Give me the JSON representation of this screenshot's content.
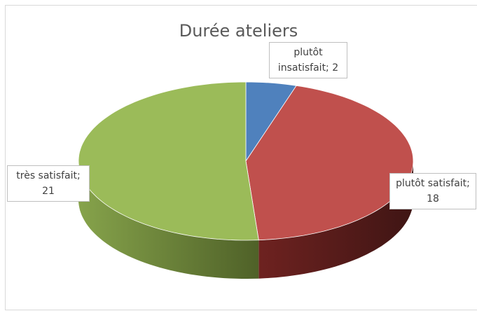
{
  "chart_data": {
    "type": "pie",
    "title": "Durée ateliers",
    "categories": [
      "plutôt insatisfait",
      "plutôt satisfait",
      "très satisfait"
    ],
    "values": [
      2,
      18,
      21
    ],
    "value_labels": [
      "plutôt insatisfait; 2",
      "plutôt satisfait; 18",
      "très satisfait; 21"
    ],
    "colors": [
      "#4f81bd",
      "#c0504d",
      "#9bbb59"
    ]
  }
}
